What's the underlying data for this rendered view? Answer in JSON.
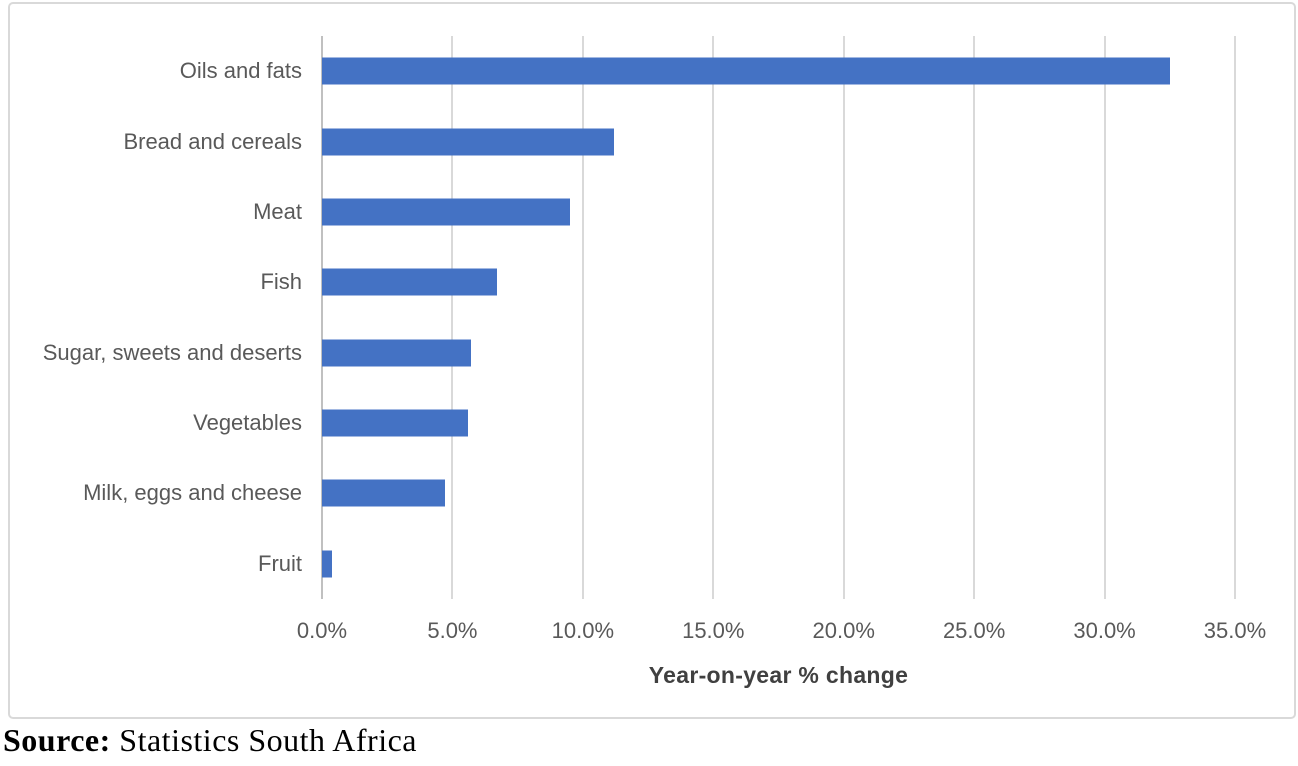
{
  "chart_data": {
    "type": "bar",
    "orientation": "horizontal",
    "title": "",
    "categories": [
      "Oils and fats",
      "Bread and cereals",
      "Meat",
      "Fish",
      "Sugar, sweets and deserts",
      "Vegetables",
      "Milk, eggs and cheese",
      "Fruit"
    ],
    "values": [
      32.5,
      11.2,
      9.5,
      6.7,
      5.7,
      5.6,
      4.7,
      0.4
    ],
    "value_unit": "%",
    "xlabel": "Year-on-year % change",
    "ylabel": "",
    "xlim": [
      0,
      35
    ],
    "x_ticks": [
      {
        "value": 0,
        "label": "0.0%"
      },
      {
        "value": 5,
        "label": "5.0%"
      },
      {
        "value": 10,
        "label": "10.0%"
      },
      {
        "value": 15,
        "label": "15.0%"
      },
      {
        "value": 20,
        "label": "20.0%"
      },
      {
        "value": 25,
        "label": "25.0%"
      },
      {
        "value": 30,
        "label": "30.0%"
      },
      {
        "value": 35,
        "label": "35.0%"
      }
    ],
    "grid": "vertical-gridlines",
    "legend": "none"
  },
  "source": {
    "label": "Source:",
    "text": " Statistics South Africa"
  },
  "colors": {
    "bar": "#4472C4",
    "gridline": "#D9D9D9",
    "value_axis_line": "#C0C0C0",
    "tick_label": "#595959",
    "category_label": "#595959",
    "axis_title": "#404040",
    "frame_border": "#D9D9D9",
    "source_text": "#000000"
  }
}
